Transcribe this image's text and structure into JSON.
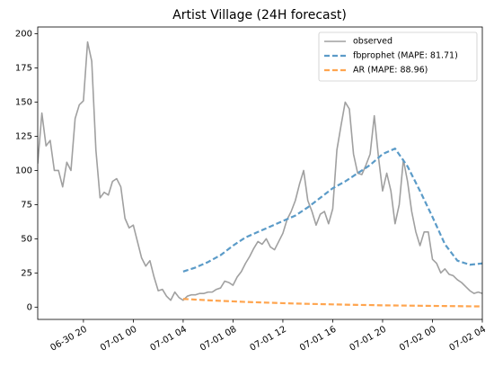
{
  "chart_data": {
    "type": "line",
    "title": "Artist Village (24H forecast)",
    "xlim": [
      "06-30 16:20",
      "07-02 04:00"
    ],
    "xticks": [
      "06-30 20",
      "07-01 00",
      "07-01 04",
      "07-01 08",
      "07-01 12",
      "07-01 16",
      "07-01 20",
      "07-02 00",
      "07-02 04"
    ],
    "ylim": [
      -9,
      205
    ],
    "yticks": [
      0,
      25,
      50,
      75,
      100,
      125,
      150,
      175,
      200
    ],
    "legend": "upper right",
    "series": [
      {
        "name": "observed",
        "color": "#a0a0a0",
        "dash": "solid",
        "x": [
          "06-30 16:20",
          "06-30 16:40",
          "06-30 17:00",
          "06-30 17:20",
          "06-30 17:40",
          "06-30 18:00",
          "06-30 18:20",
          "06-30 18:40",
          "06-30 19:00",
          "06-30 19:20",
          "06-30 19:40",
          "06-30 20:00",
          "06-30 20:20",
          "06-30 20:40",
          "06-30 21:00",
          "06-30 21:20",
          "06-30 21:40",
          "06-30 22:00",
          "06-30 22:20",
          "06-30 22:40",
          "06-30 23:00",
          "06-30 23:20",
          "06-30 23:40",
          "07-01 00:00",
          "07-01 00:20",
          "07-01 00:40",
          "07-01 01:00",
          "07-01 01:20",
          "07-01 01:40",
          "07-01 02:00",
          "07-01 02:20",
          "07-01 02:40",
          "07-01 03:00",
          "07-01 03:20",
          "07-01 03:40",
          "07-01 04:00",
          "07-01 04:20",
          "07-01 04:40",
          "07-01 05:00",
          "07-01 05:20",
          "07-01 05:40",
          "07-01 06:00",
          "07-01 06:20",
          "07-01 06:40",
          "07-01 07:00",
          "07-01 07:20",
          "07-01 07:40",
          "07-01 08:00",
          "07-01 08:20",
          "07-01 08:40",
          "07-01 09:00",
          "07-01 09:20",
          "07-01 09:40",
          "07-01 10:00",
          "07-01 10:20",
          "07-01 10:40",
          "07-01 11:00",
          "07-01 11:20",
          "07-01 11:40",
          "07-01 12:00",
          "07-01 12:20",
          "07-01 12:40",
          "07-01 13:00",
          "07-01 13:20",
          "07-01 13:40",
          "07-01 14:00",
          "07-01 14:20",
          "07-01 14:40",
          "07-01 15:00",
          "07-01 15:20",
          "07-01 15:40",
          "07-01 16:00",
          "07-01 16:20",
          "07-01 16:40",
          "07-01 17:00",
          "07-01 17:20",
          "07-01 17:40",
          "07-01 18:00",
          "07-01 18:20",
          "07-01 18:40",
          "07-01 19:00",
          "07-01 19:20",
          "07-01 19:40",
          "07-01 20:00",
          "07-01 20:20",
          "07-01 20:40",
          "07-01 21:00",
          "07-01 21:20",
          "07-01 21:40",
          "07-01 22:00",
          "07-01 22:20",
          "07-01 22:40",
          "07-01 23:00",
          "07-01 23:20",
          "07-01 23:40",
          "07-02 00:00",
          "07-02 00:20",
          "07-02 00:40",
          "07-02 01:00",
          "07-02 01:20",
          "07-02 01:40",
          "07-02 02:00",
          "07-02 02:20",
          "07-02 02:40",
          "07-02 03:00",
          "07-02 03:20",
          "07-02 03:40",
          "07-02 04:00"
        ],
        "values": [
          105,
          142,
          118,
          122,
          100,
          100,
          88,
          106,
          100,
          138,
          148,
          151,
          194,
          180,
          115,
          80,
          84,
          82,
          92,
          94,
          88,
          65,
          58,
          60,
          48,
          36,
          30,
          34,
          22,
          12,
          13,
          8,
          5,
          11,
          7,
          5,
          8,
          9,
          9,
          10,
          10,
          11,
          11,
          13,
          14,
          19,
          18,
          16,
          22,
          26,
          32,
          37,
          43,
          48,
          46,
          50,
          44,
          42,
          48,
          54,
          64,
          70,
          78,
          90,
          100,
          78,
          70,
          60,
          68,
          70,
          61,
          72,
          115,
          133,
          150,
          145,
          112,
          98,
          97,
          104,
          112,
          140,
          110,
          85,
          98,
          85,
          61,
          75,
          108,
          92,
          70,
          55,
          45,
          55,
          55,
          35,
          32,
          25,
          28,
          24,
          23,
          20,
          18,
          15,
          12,
          10,
          11,
          10
        ]
      },
      {
        "name": "fbprophet (MAPE: 81.71)",
        "color": "#5b9bc8",
        "dash": "dashed",
        "x": [
          "07-01 04:00",
          "07-01 05:00",
          "07-01 06:00",
          "07-01 07:00",
          "07-01 08:00",
          "07-01 09:00",
          "07-01 10:00",
          "07-01 11:00",
          "07-01 12:00",
          "07-01 13:00",
          "07-01 14:00",
          "07-01 15:00",
          "07-01 16:00",
          "07-01 17:00",
          "07-01 18:00",
          "07-01 19:00",
          "07-01 20:00",
          "07-01 21:00",
          "07-01 22:00",
          "07-01 23:00",
          "07-02 00:00",
          "07-02 01:00",
          "07-02 02:00",
          "07-02 03:00",
          "07-02 04:00"
        ],
        "values": [
          26,
          29,
          33,
          38,
          45,
          51,
          55,
          59,
          63,
          67,
          73,
          80,
          87,
          92,
          98,
          104,
          112,
          116,
          103,
          85,
          66,
          46,
          34,
          31,
          32
        ]
      },
      {
        "name": "AR (MAPE: 88.96)",
        "color": "#ffa54f",
        "dash": "dashed",
        "x": [
          "07-01 04:00",
          "07-01 05:00",
          "07-01 06:00",
          "07-01 07:00",
          "07-01 08:00",
          "07-01 09:00",
          "07-01 10:00",
          "07-01 11:00",
          "07-01 12:00",
          "07-01 13:00",
          "07-01 14:00",
          "07-01 15:00",
          "07-01 16:00",
          "07-01 17:00",
          "07-01 18:00",
          "07-01 19:00",
          "07-01 20:00",
          "07-01 21:00",
          "07-01 22:00",
          "07-01 23:00",
          "07-02 00:00",
          "07-02 01:00",
          "07-02 02:00",
          "07-02 03:00",
          "07-02 04:00"
        ],
        "values": [
          6,
          5.5,
          5,
          4.6,
          4.2,
          3.8,
          3.5,
          3.2,
          2.9,
          2.6,
          2.4,
          2.2,
          2,
          1.8,
          1.6,
          1.5,
          1.3,
          1.2,
          1.1,
          1,
          0.9,
          0.8,
          0.7,
          0.6,
          0.5
        ]
      }
    ]
  }
}
